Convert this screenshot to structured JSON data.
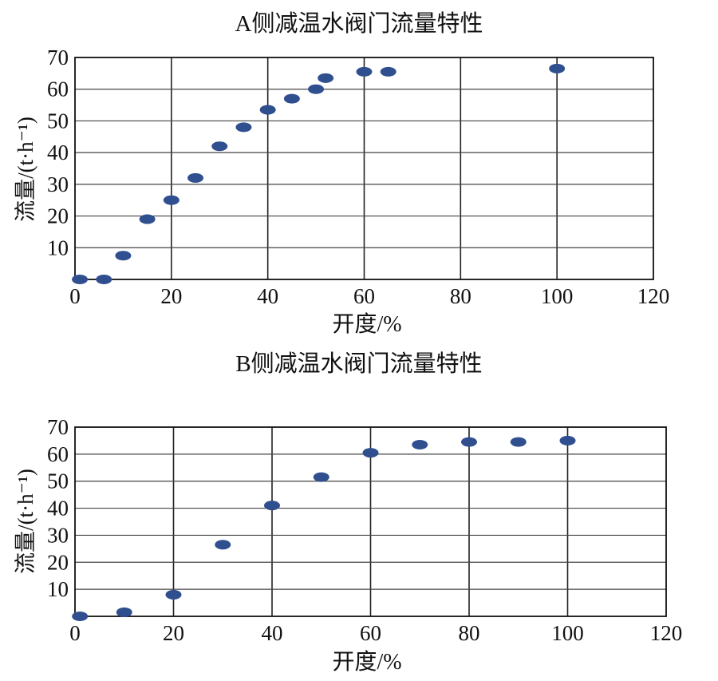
{
  "chart_data": [
    {
      "type": "scatter",
      "title": "A侧减温水阀门流量特性",
      "xlabel": "开度/%",
      "ylabel": "流量/(t·h⁻¹)",
      "xlim": [
        0,
        120
      ],
      "ylim": [
        0,
        70
      ],
      "x_ticks": [
        "0",
        "20",
        "40",
        "60",
        "80",
        "100",
        "120"
      ],
      "y_ticks": [
        "10",
        "20",
        "30",
        "40",
        "50",
        "60",
        "70"
      ],
      "grid": true,
      "marker_color": "#2f4f8f",
      "points": [
        {
          "x": 1,
          "y": 0
        },
        {
          "x": 6,
          "y": 0
        },
        {
          "x": 10,
          "y": 7.5
        },
        {
          "x": 15,
          "y": 19
        },
        {
          "x": 20,
          "y": 25
        },
        {
          "x": 25,
          "y": 32
        },
        {
          "x": 30,
          "y": 42
        },
        {
          "x": 35,
          "y": 48
        },
        {
          "x": 40,
          "y": 53.5
        },
        {
          "x": 45,
          "y": 57
        },
        {
          "x": 50,
          "y": 60
        },
        {
          "x": 52,
          "y": 63.5
        },
        {
          "x": 60,
          "y": 65.5
        },
        {
          "x": 65,
          "y": 65.5
        },
        {
          "x": 100,
          "y": 66.5
        }
      ]
    },
    {
      "type": "scatter",
      "title": "B侧减温水阀门流量特性",
      "xlabel": "开度/%",
      "ylabel": "流量/(t·h⁻¹)",
      "xlim": [
        0,
        120
      ],
      "ylim": [
        0,
        70
      ],
      "x_ticks": [
        "0",
        "20",
        "40",
        "60",
        "80",
        "100",
        "120"
      ],
      "y_ticks": [
        "10",
        "20",
        "30",
        "40",
        "50",
        "60",
        "70"
      ],
      "grid": true,
      "marker_color": "#2f4f8f",
      "points": [
        {
          "x": 1,
          "y": 0
        },
        {
          "x": 10,
          "y": 1.5
        },
        {
          "x": 20,
          "y": 8
        },
        {
          "x": 30,
          "y": 26.5
        },
        {
          "x": 40,
          "y": 41
        },
        {
          "x": 50,
          "y": 51.5
        },
        {
          "x": 60,
          "y": 60.5
        },
        {
          "x": 70,
          "y": 63.5
        },
        {
          "x": 80,
          "y": 64.5
        },
        {
          "x": 90,
          "y": 64.5
        },
        {
          "x": 100,
          "y": 65
        }
      ]
    }
  ]
}
